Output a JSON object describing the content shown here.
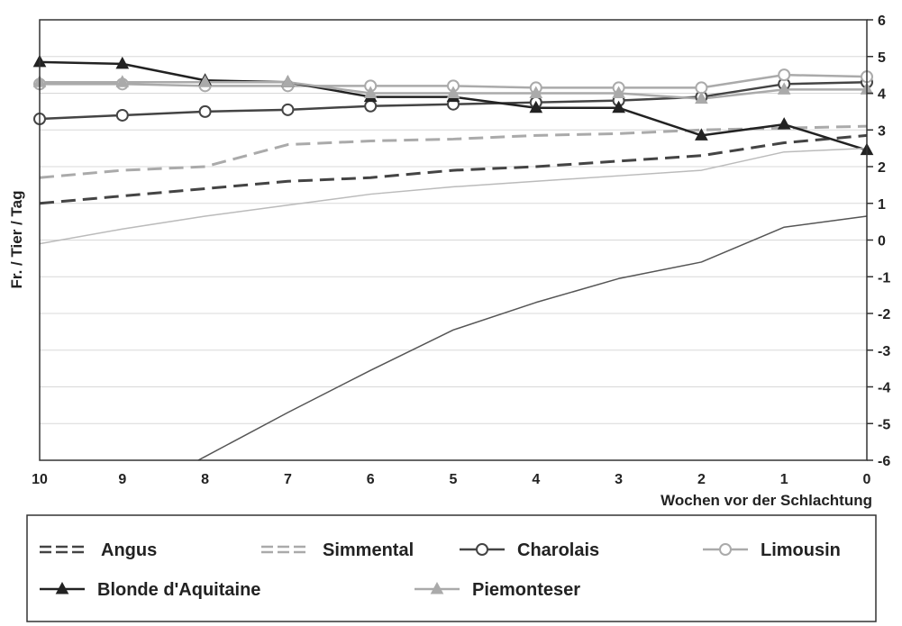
{
  "chart_data": {
    "type": "line",
    "ylabel": "Fr. / Tier / Tag",
    "xlabel": "Wochen vor der Schlachtung",
    "x": [
      10,
      9,
      8,
      7,
      6,
      5,
      4,
      3,
      2,
      1,
      0
    ],
    "x_ticks": [
      "10",
      "9",
      "8",
      "7",
      "6",
      "5",
      "4",
      "3",
      "2",
      "1",
      "0"
    ],
    "xlim": [
      10,
      0
    ],
    "ylim": [
      -6,
      6
    ],
    "y_ticks": [
      "6",
      "5",
      "4",
      "3",
      "2",
      "1",
      "0",
      "-1",
      "-2",
      "-3",
      "-4",
      "-5",
      "-6"
    ],
    "y_axis_side": "right",
    "grid": "horizontal",
    "legend_position": "bottom",
    "series": [
      {
        "name": "Angus",
        "style": "dash-double",
        "color": "#444444",
        "values": [
          1.0,
          1.2,
          1.4,
          1.6,
          1.7,
          1.9,
          2.0,
          2.15,
          2.3,
          2.65,
          2.85
        ]
      },
      {
        "name": "Simmental",
        "style": "dash-double-light",
        "color": "#aaaaaa",
        "values": [
          1.7,
          1.9,
          2.0,
          2.6,
          2.7,
          2.75,
          2.85,
          2.9,
          3.0,
          3.05,
          3.1
        ]
      },
      {
        "name": "Charolais",
        "style": "line-circle",
        "color": "#444444",
        "values": [
          3.3,
          3.4,
          3.5,
          3.55,
          3.65,
          3.7,
          3.75,
          3.8,
          3.9,
          4.25,
          4.3
        ]
      },
      {
        "name": "Limousin",
        "style": "line-circle-light",
        "color": "#aaaaaa",
        "values": [
          4.25,
          4.25,
          4.2,
          4.2,
          4.2,
          4.2,
          4.15,
          4.15,
          4.15,
          4.5,
          4.45
        ]
      },
      {
        "name": "Blonde d'Aquitaine",
        "style": "line-triangle",
        "color": "#222222",
        "values": [
          4.85,
          4.8,
          4.35,
          4.3,
          3.9,
          3.9,
          3.6,
          3.6,
          2.85,
          3.15,
          2.45
        ]
      },
      {
        "name": "Piemonteser",
        "style": "line-triangle-light",
        "color": "#aaaaaa",
        "values": [
          4.3,
          4.3,
          4.3,
          4.3,
          4.0,
          4.0,
          4.0,
          4.0,
          3.85,
          4.1,
          4.1
        ]
      },
      {
        "name": "",
        "style": "thin",
        "color": "#555555",
        "values": [
          null,
          null,
          -5.9,
          -4.7,
          -3.55,
          -2.45,
          -1.7,
          -1.05,
          -0.6,
          0.35,
          0.65
        ]
      },
      {
        "name": "",
        "style": "thin-light",
        "color": "#bbbbbb",
        "values": [
          -0.1,
          0.3,
          0.65,
          0.95,
          1.25,
          1.45,
          1.6,
          1.75,
          1.9,
          2.4,
          2.5
        ]
      }
    ],
    "legend": [
      {
        "label": "Angus",
        "style": "dash-double"
      },
      {
        "label": "Simmental",
        "style": "dash-double-light"
      },
      {
        "label": "Charolais",
        "style": "line-circle"
      },
      {
        "label": "Limousin",
        "style": "line-circle-light"
      },
      {
        "label": "Blonde d'Aquitaine",
        "style": "line-triangle"
      },
      {
        "label": "Piemonteser",
        "style": "line-triangle-light"
      }
    ]
  }
}
